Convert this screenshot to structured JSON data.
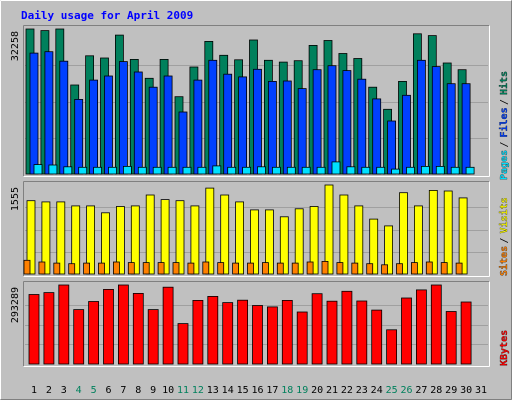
{
  "title": "Daily usage for April 2009",
  "colors": {
    "background": "#c0c0c0",
    "title": "#0000ff",
    "hits": "#00805c",
    "files": "#0040ff",
    "pages": "#00e0ff",
    "visits": "#ff8000",
    "sites": "#ffff00",
    "kbytes": "#ff0000",
    "weekend_label": "#00805c"
  },
  "chart_data": [
    {
      "type": "bar",
      "title": "Daily usage for April 2009",
      "max_label": "32258",
      "ymax": 32258,
      "legend": [
        {
          "label": "Pages",
          "color": "#00e0ff"
        },
        {
          "label": "Files",
          "color": "#0040ff"
        },
        {
          "label": "Hits",
          "color": "#00805c"
        }
      ],
      "categories": [
        "1",
        "2",
        "3",
        "4",
        "5",
        "6",
        "7",
        "8",
        "9",
        "10",
        "11",
        "12",
        "13",
        "14",
        "15",
        "16",
        "17",
        "18",
        "19",
        "20",
        "21",
        "22",
        "23",
        "24",
        "25",
        "26",
        "27",
        "28",
        "29",
        "30",
        "31"
      ],
      "series": [
        {
          "name": "Hits",
          "values": [
            32258,
            31900,
            32258,
            19800,
            26300,
            25800,
            30900,
            25500,
            21300,
            25500,
            17200,
            23800,
            29500,
            26400,
            25400,
            29800,
            25300,
            24900,
            25200,
            28600,
            29700,
            26800,
            25700,
            19300,
            14400,
            20600,
            31200,
            30800,
            24700,
            23200,
            0
          ]
        },
        {
          "name": "Files",
          "values": [
            26900,
            27200,
            25100,
            16600,
            20900,
            21800,
            25000,
            22700,
            19300,
            21800,
            13800,
            20900,
            25300,
            22200,
            21600,
            23300,
            20600,
            20700,
            19000,
            23200,
            24100,
            23000,
            21100,
            16700,
            11800,
            17500,
            25300,
            23900,
            20100,
            20100,
            0
          ]
        },
        {
          "name": "Pages",
          "values": [
            2100,
            2000,
            1600,
            1500,
            1500,
            1500,
            1700,
            1500,
            1500,
            1500,
            1500,
            1500,
            1800,
            1500,
            1500,
            1600,
            1500,
            1500,
            1500,
            1500,
            2700,
            1600,
            1500,
            1500,
            1100,
            1500,
            1700,
            1700,
            1500,
            1500,
            0
          ]
        }
      ]
    },
    {
      "type": "bar",
      "max_label": "1555",
      "ymax": 1555,
      "legend": [
        {
          "label": "Sites",
          "color": "#ff8000"
        },
        {
          "label": "Visits",
          "color": "#ffff00"
        }
      ],
      "categories": [
        "1",
        "2",
        "3",
        "4",
        "5",
        "6",
        "7",
        "8",
        "9",
        "10",
        "11",
        "12",
        "13",
        "14",
        "15",
        "16",
        "17",
        "18",
        "19",
        "20",
        "21",
        "22",
        "23",
        "24",
        "25",
        "26",
        "27",
        "28",
        "29",
        "30",
        "31"
      ],
      "series": [
        {
          "name": "Visits",
          "values": [
            1280,
            1260,
            1260,
            1190,
            1190,
            1070,
            1180,
            1190,
            1380,
            1300,
            1280,
            1190,
            1500,
            1380,
            1260,
            1120,
            1120,
            1000,
            1140,
            1180,
            1555,
            1380,
            1190,
            960,
            840,
            1420,
            1190,
            1460,
            1450,
            1330,
            0
          ]
        },
        {
          "name": "Sites",
          "values": [
            240,
            210,
            190,
            180,
            190,
            190,
            210,
            200,
            200,
            200,
            200,
            190,
            210,
            200,
            190,
            190,
            200,
            190,
            190,
            210,
            220,
            200,
            190,
            180,
            160,
            180,
            200,
            210,
            200,
            190,
            0
          ]
        }
      ]
    },
    {
      "type": "bar",
      "max_label": "293289",
      "ymax": 293289,
      "legend": [
        {
          "label": "KBytes",
          "color": "#ff0000"
        }
      ],
      "categories": [
        "1",
        "2",
        "3",
        "4",
        "5",
        "6",
        "7",
        "8",
        "9",
        "10",
        "11",
        "12",
        "13",
        "14",
        "15",
        "16",
        "17",
        "18",
        "19",
        "20",
        "21",
        "22",
        "23",
        "24",
        "25",
        "26",
        "27",
        "28",
        "29",
        "30",
        "31"
      ],
      "series": [
        {
          "name": "KBytes",
          "values": [
            258000,
            265000,
            293289,
            202000,
            232000,
            277000,
            293289,
            262000,
            202000,
            285000,
            150000,
            236000,
            251000,
            228000,
            237000,
            217000,
            212000,
            236000,
            193000,
            261000,
            233000,
            270000,
            234000,
            200000,
            127000,
            245000,
            275000,
            293289,
            195000,
            230000,
            0
          ]
        }
      ]
    }
  ]
}
